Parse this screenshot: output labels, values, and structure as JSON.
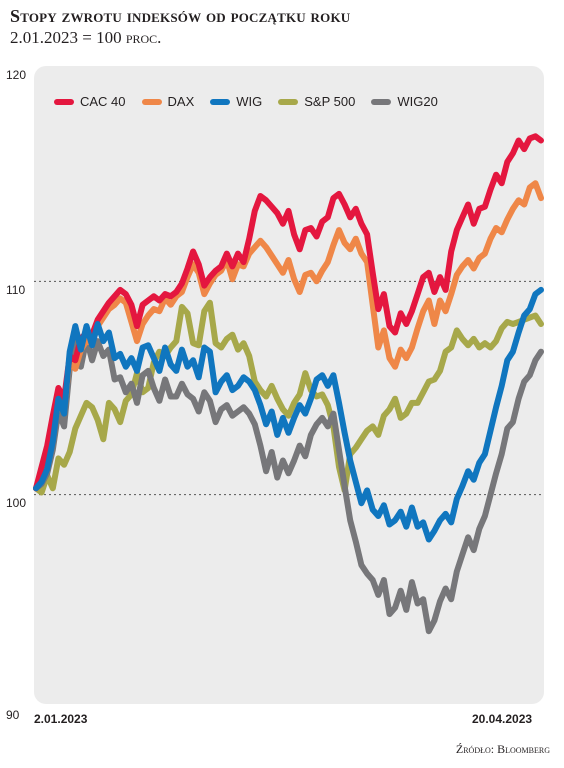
{
  "header": {
    "title": "Stopy zwrotu indeksów od początku roku",
    "subtitle": "2.01.2023 = 100 proc."
  },
  "source": "Źródło: Bloomberg",
  "chart_data": {
    "type": "line",
    "title": "Stopy zwrotu indeksów od początku roku",
    "subtitle": "2.01.2023 = 100 proc.",
    "xlabel": "",
    "ylabel": "",
    "ylim": [
      90,
      120
    ],
    "yticks": [
      "90",
      "100",
      "110",
      "120"
    ],
    "xtick_labels": [
      "2.01.2023",
      "20.04.2023"
    ],
    "x_range": [
      "2.01.2023",
      "20.04.2023"
    ],
    "reference_lines": [
      100,
      110
    ],
    "legend_position": "top-left",
    "colors": {
      "CAC 40": "#e4173f",
      "DAX": "#ef8748",
      "WIG": "#1076bf",
      "S&P 500": "#a7a84a",
      "WIG20": "#77777a"
    },
    "series": [
      {
        "name": "CAC 40",
        "values": [
          100.3,
          101.3,
          102.3,
          103.7,
          105.0,
          104.5,
          106.5,
          106.3,
          107.3,
          107.6,
          107.5,
          108.2,
          108.6,
          109.0,
          109.3,
          109.6,
          109.4,
          108.9,
          107.9,
          108.9,
          109.1,
          109.3,
          109.1,
          109.4,
          109.3,
          109.5,
          109.9,
          110.6,
          111.4,
          110.8,
          109.8,
          110.2,
          110.5,
          110.7,
          111.3,
          110.7,
          111.3,
          110.9,
          112.0,
          113.3,
          114.0,
          113.8,
          113.5,
          113.2,
          112.7,
          113.3,
          112.2,
          111.5,
          112.4,
          112.5,
          112.1,
          112.8,
          113.0,
          113.9,
          114.1,
          113.6,
          113.0,
          113.4,
          112.7,
          112.2,
          110.4,
          108.7,
          109.4,
          107.9,
          107.6,
          108.5,
          108.0,
          108.6,
          109.4,
          110.2,
          110.4,
          109.5,
          110.2,
          109.6,
          111.4,
          112.4,
          113.0,
          113.6,
          112.7,
          113.4,
          113.5,
          114.3,
          115.0,
          114.6,
          115.6,
          116.0,
          116.6,
          116.2,
          116.7,
          116.8,
          116.6
        ]
      },
      {
        "name": "DAX",
        "values": [
          100.3,
          101.0,
          101.8,
          102.9,
          104.3,
          104.0,
          106.3,
          105.9,
          106.8,
          107.2,
          107.1,
          107.9,
          108.3,
          108.7,
          108.9,
          109.2,
          109.0,
          108.1,
          107.2,
          108.0,
          108.4,
          108.7,
          108.6,
          109.2,
          108.9,
          109.3,
          109.5,
          110.2,
          110.8,
          110.4,
          109.4,
          109.9,
          110.3,
          110.5,
          111.0,
          110.1,
          110.8,
          110.7,
          111.3,
          111.6,
          111.9,
          111.6,
          111.2,
          110.8,
          110.4,
          111.0,
          110.1,
          109.5,
          110.3,
          110.4,
          110.0,
          110.5,
          110.9,
          111.7,
          112.4,
          111.8,
          111.5,
          112.0,
          111.3,
          110.9,
          108.9,
          106.9,
          107.7,
          106.4,
          106.0,
          106.8,
          106.4,
          106.9,
          107.8,
          108.6,
          109.1,
          108.0,
          109.1,
          108.6,
          109.4,
          110.3,
          110.7,
          111.0,
          110.6,
          111.1,
          111.3,
          112.0,
          112.5,
          112.3,
          112.9,
          113.4,
          113.8,
          113.6,
          114.4,
          114.6,
          113.9
        ]
      },
      {
        "name": "WIG",
        "values": [
          100.3,
          100.6,
          101.2,
          102.5,
          104.5,
          103.8,
          106.7,
          107.9,
          106.8,
          107.9,
          107.0,
          108.0,
          107.2,
          107.6,
          106.4,
          106.6,
          106.0,
          106.4,
          105.8,
          106.9,
          107.0,
          106.4,
          105.8,
          106.9,
          106.1,
          105.8,
          106.8,
          106.0,
          106.3,
          105.5,
          106.9,
          106.7,
          104.8,
          105.3,
          105.6,
          104.9,
          105.1,
          105.5,
          105.3,
          104.9,
          104.2,
          103.3,
          103.9,
          102.8,
          103.6,
          102.9,
          103.6,
          104.2,
          103.8,
          104.5,
          105.4,
          105.6,
          105.1,
          105.6,
          104.3,
          102.9,
          101.6,
          100.6,
          99.6,
          100.2,
          99.3,
          99.0,
          99.5,
          98.6,
          98.8,
          99.2,
          98.5,
          99.4,
          98.5,
          98.7,
          97.9,
          98.3,
          98.8,
          99.1,
          98.7,
          99.8,
          100.4,
          101.1,
          100.7,
          101.5,
          101.9,
          103.0,
          104.1,
          105.1,
          106.3,
          106.7,
          107.6,
          108.4,
          108.7,
          109.4,
          109.6
        ]
      },
      {
        "name": "S&P 500",
        "values": [
          100.3,
          100.1,
          100.9,
          100.3,
          101.7,
          101.4,
          102.0,
          103.1,
          103.7,
          104.3,
          104.1,
          103.5,
          102.6,
          104.3,
          104.0,
          103.4,
          104.4,
          104.7,
          105.7,
          104.8,
          105.0,
          106.2,
          106.7,
          106.5,
          106.9,
          107.2,
          108.8,
          108.5,
          107.1,
          107.0,
          108.6,
          109.0,
          107.1,
          106.9,
          107.3,
          107.5,
          106.8,
          107.1,
          106.5,
          105.3,
          104.9,
          104.6,
          105.1,
          104.5,
          104.0,
          103.7,
          104.3,
          104.7,
          105.7,
          104.9,
          104.6,
          104.7,
          104.2,
          103.2,
          101.3,
          100.2,
          101.9,
          102.2,
          102.6,
          103.0,
          103.2,
          102.8,
          103.7,
          104.0,
          104.5,
          103.6,
          103.8,
          104.3,
          104.3,
          104.8,
          105.3,
          105.4,
          105.8,
          106.7,
          106.9,
          107.7,
          107.3,
          107.0,
          107.3,
          106.9,
          107.1,
          106.9,
          107.2,
          107.8,
          108.1,
          108.0,
          108.1,
          108.2,
          108.3,
          108.4,
          108.0
        ]
      },
      {
        "name": "WIG20",
        "values": [
          100.3,
          100.5,
          101.0,
          102.1,
          103.9,
          103.2,
          105.9,
          107.2,
          106.0,
          107.3,
          106.3,
          107.2,
          106.5,
          106.8,
          105.4,
          105.5,
          104.8,
          105.2,
          104.3,
          105.6,
          105.8,
          105.0,
          104.4,
          105.4,
          104.6,
          104.6,
          105.2,
          104.7,
          104.5,
          103.9,
          104.8,
          104.4,
          103.4,
          104.0,
          104.2,
          103.7,
          103.9,
          104.1,
          103.8,
          103.3,
          102.3,
          101.1,
          102.0,
          100.8,
          101.6,
          101.0,
          101.6,
          102.3,
          101.8,
          102.8,
          103.3,
          103.6,
          103.2,
          103.8,
          102.1,
          100.4,
          98.8,
          97.8,
          96.7,
          96.3,
          96.0,
          95.3,
          96.0,
          94.4,
          94.7,
          95.5,
          94.6,
          95.9,
          94.9,
          95.1,
          93.6,
          94.1,
          95.0,
          95.6,
          95.1,
          96.4,
          97.2,
          98.0,
          97.4,
          98.4,
          99.0,
          100.0,
          101.0,
          101.9,
          103.1,
          103.4,
          104.5,
          105.3,
          105.6,
          106.3,
          106.7
        ]
      }
    ]
  }
}
